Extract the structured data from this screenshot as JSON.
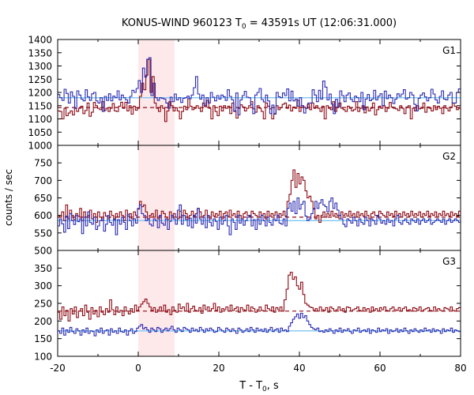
{
  "chart_data": {
    "type": "line",
    "title": "KONUS-WIND 960123 T",
    "title_sub": "0",
    "title_rest": " = 43591s UT (12:06:31.000)",
    "xlabel": "T - T",
    "xlabel_sub": "0",
    "xlabel_rest": ", s",
    "ylabel": "counts / sec",
    "xlim": [
      -20,
      80
    ],
    "x_ticks": [
      -20,
      0,
      20,
      40,
      60,
      80
    ],
    "shaded_interval": [
      0,
      9
    ],
    "grid": false,
    "colors": {
      "blue": "#2b2bb0",
      "red": "#8b0a14",
      "light_blue": "#7ec8f2",
      "pink": "#e48ac8",
      "shade": "#fde8ea"
    },
    "panels": [
      {
        "label": "G1",
        "ylim": [
          1000,
          1400
        ],
        "y_ticks": [
          1000,
          1050,
          1100,
          1150,
          1200,
          1250,
          1300,
          1350,
          1400
        ],
        "background_blue": 1180,
        "background_red": 1143,
        "blue": [
          1192,
          1180,
          1170,
          1212,
          1196,
          1160,
          1202,
          1185,
          1140,
          1206,
          1190,
          1175,
          1168,
          1210,
          1183,
          1170,
          1195,
          1200,
          1168,
          1160,
          1180,
          1128,
          1185,
          1170,
          1195,
          1168,
          1186,
          1180,
          1206,
          1172,
          1190,
          1180,
          1172,
          1160,
          1185,
          1208,
          1200,
          1215,
          1245,
          1200,
          1292,
          1258,
          1325,
          1331,
          1188,
          1235,
          1180,
          1170,
          1180,
          1178,
          1175,
          1160,
          1140,
          1182,
          1165,
          1194,
          1172,
          1180,
          1162,
          1178,
          1180,
          1186,
          1176,
          1190,
          1218,
          1260,
          1194,
          1175,
          1190,
          1150,
          1180,
          1160,
          1200,
          1182,
          1168,
          1188,
          1175,
          1190,
          1184,
          1170,
          1210,
          1185,
          1172,
          1128,
          1198,
          1115,
          1172,
          1188,
          1204,
          1182,
          1180,
          1155,
          1120,
          1190,
          1200,
          1215,
          1173,
          1164,
          1190,
          1168,
          1120,
          1152,
          1118,
          1200,
          1184,
          1180,
          1198,
          1188,
          1213,
          1168,
          1205,
          1168,
          1175,
          1148,
          1180,
          1150,
          1122,
          1140,
          1160,
          1160,
          1210,
          1190,
          1165,
          1208,
          1175,
          1243,
          1220,
          1172,
          1194,
          1156,
          1120,
          1174,
          1145,
          1206,
          1188,
          1165,
          1190,
          1198,
          1174,
          1165,
          1186,
          1180,
          1165,
          1200,
          1135,
          1175,
          1192,
          1169,
          1175,
          1208,
          1172,
          1186,
          1195,
          1150,
          1205,
          1176,
          1190,
          1180,
          1158,
          1175,
          1195,
          1185,
          1194,
          1210,
          1175,
          1180,
          1200,
          1190,
          1155,
          1130,
          1178,
          1190,
          1198,
          1183,
          1168,
          1180,
          1212,
          1194,
          1172,
          1160,
          1185,
          1206,
          1175,
          1172,
          1190,
          1200,
          1160,
          1160,
          1200,
          1213
        ],
        "red": [
          1130,
          1128,
          1100,
          1140,
          1112,
          1122,
          1130,
          1115,
          1140,
          1128,
          1140,
          1148,
          1120,
          1132,
          1160,
          1110,
          1125,
          1162,
          1150,
          1140,
          1135,
          1165,
          1132,
          1140,
          1128,
          1140,
          1158,
          1130,
          1128,
          1148,
          1163,
          1140,
          1163,
          1130,
          1150,
          1118,
          1148,
          1133,
          1140,
          1185,
          1235,
          1210,
          1265,
          1325,
          1200,
          1260,
          1160,
          1140,
          1128,
          1150,
          1140,
          1090,
          1130,
          1165,
          1150,
          1130,
          1142,
          1130,
          1100,
          1128,
          1148,
          1135,
          1176,
          1148,
          1135,
          1140,
          1150,
          1140,
          1128,
          1160,
          1146,
          1170,
          1140,
          1100,
          1150,
          1128,
          1112,
          1148,
          1130,
          1150,
          1140,
          1148,
          1120,
          1160,
          1130,
          1103,
          1140,
          1153,
          1145,
          1130,
          1140,
          1150,
          1165,
          1138,
          1125,
          1150,
          1140,
          1128,
          1100,
          1160,
          1148,
          1138,
          1100,
          1120,
          1150,
          1135,
          1142,
          1155,
          1160,
          1140,
          1152,
          1130,
          1145,
          1140,
          1170,
          1128,
          1150,
          1145,
          1140,
          1155,
          1135,
          1160,
          1140,
          1150,
          1140,
          1128,
          1148,
          1100,
          1150,
          1140,
          1135,
          1165,
          1128,
          1145,
          1160,
          1140,
          1135,
          1128,
          1148,
          1140,
          1130,
          1135,
          1165,
          1128,
          1140,
          1150,
          1123,
          1145,
          1130,
          1140,
          1160,
          1115,
          1135,
          1148,
          1140,
          1150,
          1128,
          1140,
          1162,
          1145,
          1140,
          1138,
          1132,
          1150,
          1140,
          1120,
          1145,
          1150,
          1100,
          1140,
          1130,
          1150,
          1138,
          1140,
          1160,
          1125,
          1145,
          1140,
          1130,
          1150,
          1135,
          1148,
          1140,
          1120,
          1150,
          1140,
          1130,
          1145,
          1160,
          1148,
          1135,
          1140
        ]
      },
      {
        "label": "G2",
        "ylim": [
          500,
          800
        ],
        "y_ticks": [
          500,
          550,
          600,
          650,
          700,
          750
        ],
        "background_blue": 585,
        "background_red": 595,
        "blue": [
          570,
          590,
          576,
          552,
          598,
          562,
          605,
          585,
          574,
          600,
          582,
          590,
          548,
          595,
          570,
          610,
          580,
          575,
          595,
          560,
          570,
          585,
          590,
          555,
          575,
          600,
          580,
          572,
          590,
          545,
          588,
          575,
          595,
          580,
          560,
          603,
          585,
          570,
          590,
          578,
          620,
          630,
          605,
          600,
          585,
          590,
          575,
          570,
          590,
          585,
          565,
          600,
          578,
          572,
          590,
          560,
          583,
          600,
          590,
          575,
          615,
          630,
          575,
          600,
          588,
          570,
          592,
          565,
          600,
          578,
          620,
          590,
          575,
          595,
          565,
          600,
          580,
          570,
          590,
          583,
          560,
          595,
          575,
          585,
          600,
          570,
          545,
          590,
          580,
          560,
          600,
          578,
          590,
          572,
          585,
          595,
          600,
          570,
          588,
          560,
          590,
          575,
          600,
          585,
          570,
          595,
          580,
          572,
          590,
          585,
          600,
          578,
          575,
          590,
          570,
          620,
          635,
          612,
          640,
          605,
          650,
          618,
          632,
          640,
          598,
          585,
          590,
          605,
          618,
          640,
          620,
          635,
          645,
          630,
          625,
          610,
          640,
          650,
          620,
          635,
          615,
          600,
          590,
          575,
          568,
          590,
          585,
          578,
          595,
          585,
          570,
          590,
          580,
          575,
          595,
          585,
          570,
          590,
          585,
          575,
          600,
          590,
          578,
          585,
          575,
          590,
          580,
          585,
          570,
          590,
          600,
          580,
          575,
          585,
          590,
          580,
          575,
          590,
          585,
          580,
          590,
          575,
          585,
          590,
          580,
          585,
          590,
          575,
          580,
          585,
          590,
          585,
          580,
          590,
          575,
          585,
          590,
          580,
          585,
          590,
          585,
          580
        ],
        "red": [
          600,
          595,
          610,
          585,
          630,
          590,
          615,
          600,
          588,
          605,
          598,
          620,
          585,
          610,
          595,
          600,
          615,
          590,
          605,
          580,
          610,
          595,
          585,
          608,
          598,
          590,
          612,
          600,
          588,
          605,
          595,
          610,
          600,
          585,
          615,
          598,
          605,
          590,
          610,
          600,
          618,
          640,
          625,
          630,
          610,
          590,
          600,
          605,
          595,
          615,
          590,
          600,
          612,
          605,
          595,
          588,
          610,
          600,
          605,
          595,
          590,
          612,
          600,
          615,
          605,
          590,
          600,
          612,
          598,
          605,
          620,
          610,
          595,
          600,
          615,
          600,
          590,
          610,
          598,
          605,
          600,
          612,
          590,
          605,
          610,
          598,
          615,
          600,
          605,
          595,
          612,
          600,
          590,
          605,
          610,
          600,
          598,
          612,
          605,
          600,
          595,
          610,
          600,
          605,
          590,
          612,
          598,
          605,
          600,
          610,
          595,
          605,
          600,
          612,
          598,
          640,
          660,
          700,
          730,
          680,
          720,
          690,
          710,
          700,
          670,
          650,
          655,
          640,
          620,
          590,
          600,
          580,
          600,
          610,
          595,
          605,
          600,
          612,
          598,
          605,
          600,
          590,
          610,
          600,
          605,
          598,
          612,
          600,
          605,
          595,
          610,
          600,
          605,
          598,
          612,
          600,
          590,
          605,
          610,
          600,
          598,
          612,
          605,
          600,
          595,
          610,
          600,
          605,
          598,
          612,
          600,
          605,
          595,
          610,
          600,
          605,
          598,
          612,
          600,
          605,
          600,
          610,
          595,
          605,
          600,
          612,
          598,
          605,
          600,
          610,
          595,
          605,
          600,
          612,
          600,
          605,
          598,
          610,
          600,
          605,
          598,
          612
        ]
      },
      {
        "label": "G3",
        "ylim": [
          100,
          400
        ],
        "y_ticks": [
          100,
          150,
          200,
          250,
          300,
          350
        ],
        "background_blue": 172,
        "background_red": 228,
        "blue": [
          172,
          165,
          180,
          160,
          175,
          168,
          182,
          170,
          165,
          178,
          172,
          160,
          175,
          168,
          180,
          165,
          172,
          170,
          158,
          175,
          168,
          180,
          165,
          172,
          175,
          160,
          178,
          168,
          172,
          165,
          180,
          170,
          168,
          175,
          160,
          172,
          178,
          165,
          170,
          180,
          185,
          190,
          178,
          182,
          175,
          168,
          180,
          175,
          170,
          182,
          178,
          168,
          175,
          180,
          172,
          178,
          185,
          175,
          168,
          180,
          175,
          170,
          182,
          178,
          175,
          168,
          180,
          172,
          176,
          170,
          182,
          175,
          168,
          178,
          172,
          180,
          175,
          168,
          170,
          182,
          176,
          172,
          168,
          180,
          175,
          170,
          178,
          172,
          165,
          180,
          175,
          168,
          172,
          178,
          170,
          182,
          175,
          168,
          180,
          172,
          176,
          170,
          178,
          168,
          175,
          182,
          170,
          175,
          178,
          168,
          180,
          172,
          175,
          170,
          185,
          195,
          205,
          212,
          220,
          208,
          222,
          210,
          215,
          200,
          190,
          182,
          178,
          175,
          180,
          170,
          172,
          168,
          175,
          170,
          178,
          172,
          165,
          175,
          170,
          180,
          168,
          175,
          172,
          178,
          170,
          165,
          175,
          172,
          180,
          168,
          172,
          175,
          170,
          178,
          165,
          175,
          172,
          168,
          180,
          170,
          175,
          172,
          178,
          165,
          175,
          170,
          172,
          178,
          168,
          175,
          170,
          180,
          172,
          165,
          175,
          170,
          178,
          172,
          168,
          175,
          170,
          180,
          172,
          175,
          168,
          178,
          170,
          175,
          172,
          165,
          178,
          170,
          175,
          172,
          180,
          168,
          175,
          172,
          170
        ],
        "red": [
          225,
          205,
          240,
          215,
          230,
          200,
          235,
          220,
          240,
          210,
          228,
          235,
          215,
          245,
          225,
          205,
          238,
          220,
          230,
          212,
          240,
          225,
          218,
          235,
          225,
          260,
          232,
          218,
          240,
          225,
          230,
          215,
          240,
          228,
          220,
          235,
          225,
          245,
          230,
          240,
          248,
          255,
          262,
          250,
          240,
          230,
          238,
          225,
          232,
          240,
          228,
          245,
          225,
          232,
          218,
          240,
          230,
          225,
          248,
          235,
          240,
          228,
          250,
          225,
          235,
          242,
          230,
          228,
          238,
          222,
          245,
          232,
          240,
          228,
          235,
          250,
          230,
          240,
          225,
          235,
          232,
          240,
          228,
          245,
          230,
          235,
          240,
          225,
          238,
          232,
          230,
          245,
          228,
          240,
          235,
          225,
          232,
          240,
          230,
          228,
          245,
          235,
          230,
          240,
          225,
          238,
          232,
          240,
          228,
          260,
          290,
          330,
          338,
          318,
          325,
          300,
          290,
          310,
          275,
          250,
          245,
          240,
          238,
          230,
          235,
          228,
          240,
          232,
          230,
          238,
          225,
          240,
          235,
          228,
          232,
          240,
          230,
          235,
          225,
          240,
          238,
          228,
          232,
          235,
          240,
          230,
          228,
          238,
          232,
          235,
          225,
          240,
          230,
          235,
          228,
          238,
          232,
          240,
          230,
          228,
          235,
          240,
          232,
          230,
          238,
          228,
          235,
          240,
          230,
          232,
          228,
          238,
          235,
          230,
          240,
          228,
          232,
          235,
          238,
          230,
          228,
          240,
          232,
          235,
          230,
          228,
          238,
          235,
          232,
          240,
          230,
          228,
          235,
          238
        ]
      }
    ]
  }
}
